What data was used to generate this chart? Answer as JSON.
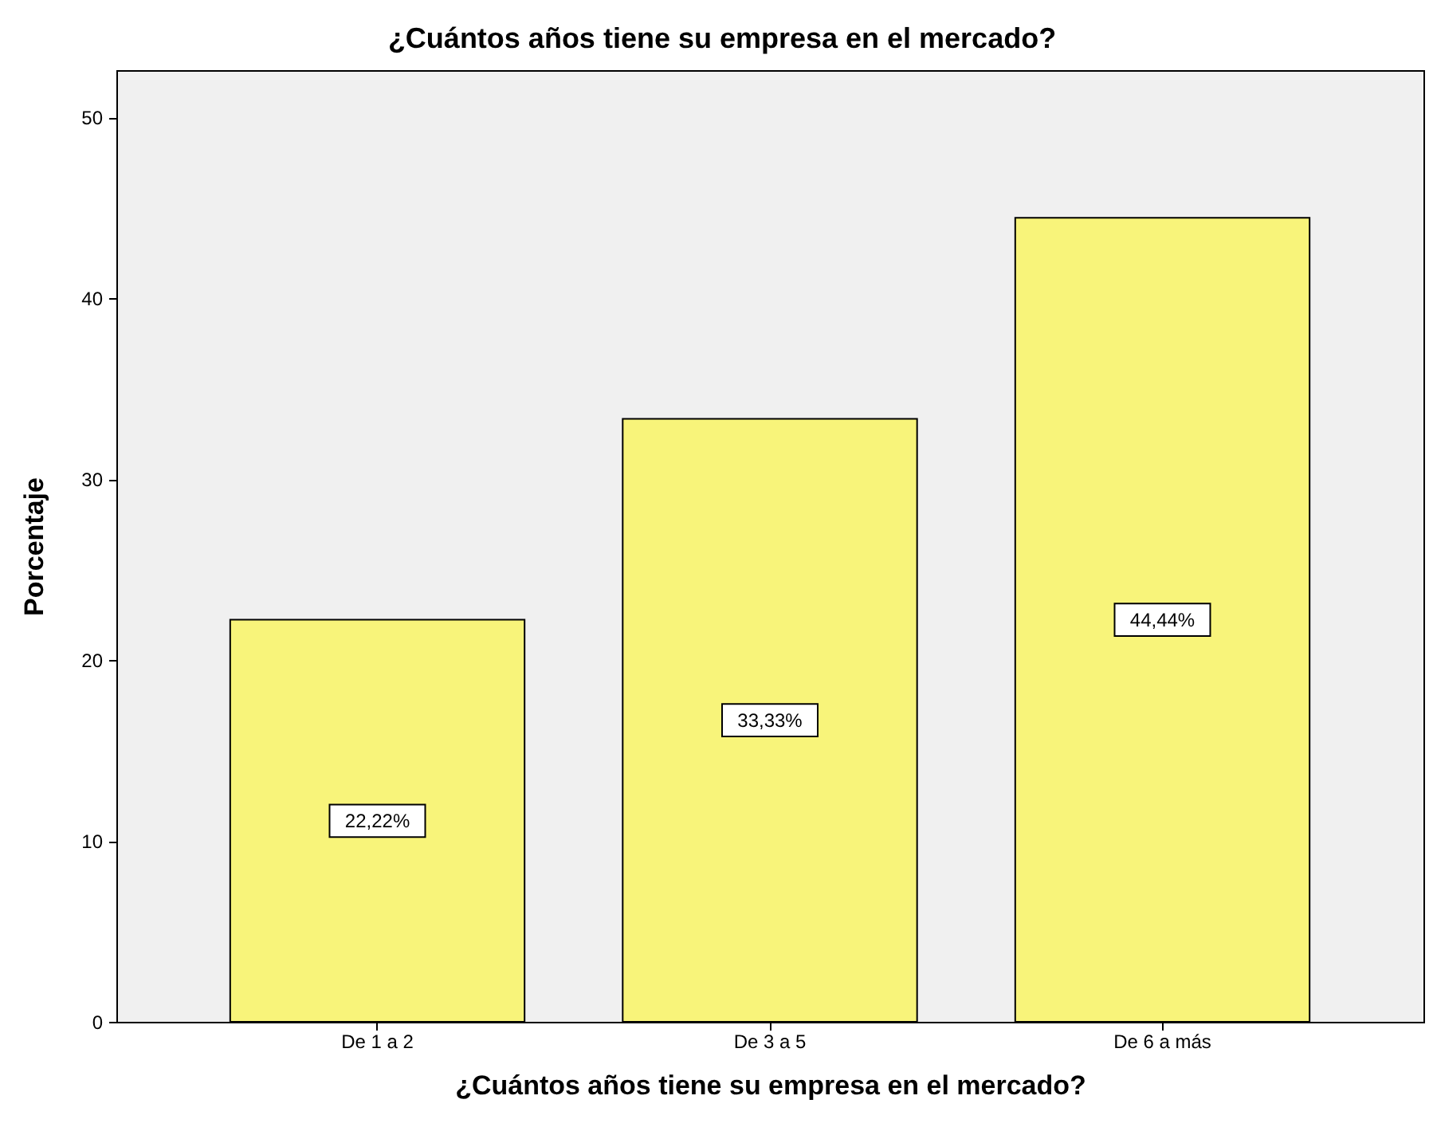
{
  "chart_data": {
    "type": "bar",
    "title": "¿Cuántos años tiene su empresa en el mercado?",
    "xlabel": "¿Cuántos años tiene su empresa en el mercado?",
    "ylabel": "Porcentaje",
    "categories": [
      "De 1 a 2",
      "De 3 a 5",
      "De 6 a más"
    ],
    "values": [
      22.22,
      33.33,
      44.44
    ],
    "value_labels": [
      "22,22%",
      "33,33%",
      "44,44%"
    ],
    "color": "#f8f47a",
    "ylim": [
      0,
      52.6
    ],
    "yticks": [
      0,
      10,
      20,
      30,
      40,
      50
    ],
    "grid": false
  }
}
